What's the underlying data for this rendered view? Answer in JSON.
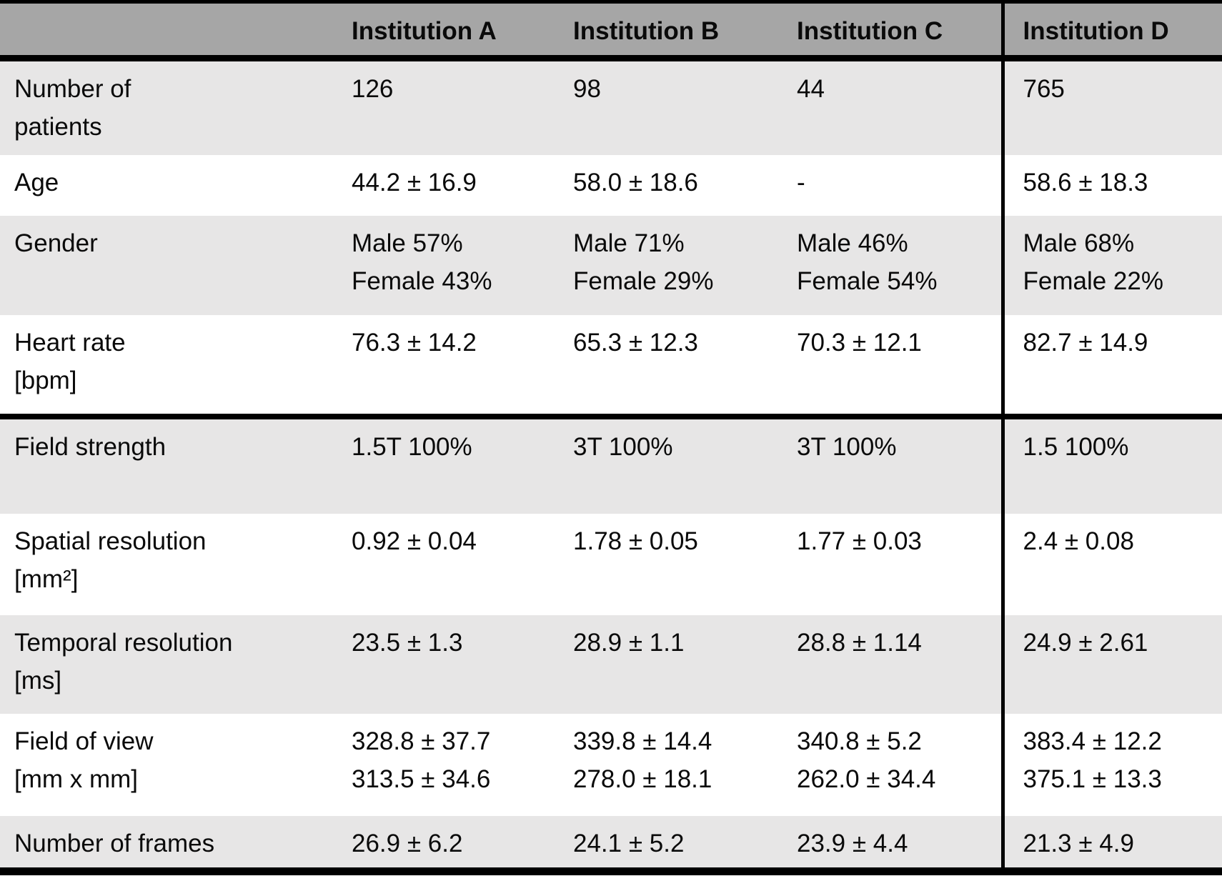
{
  "colors": {
    "header_bg": "#a6a6a6",
    "stripe_bg": "#e7e6e6",
    "row_bg": "#ffffff",
    "border": "#000000",
    "text": "#0a0a0a"
  },
  "table": {
    "columns": [
      "",
      "Institution A",
      "Institution B",
      "Institution C",
      "Institution D"
    ],
    "rows": [
      {
        "label": "Number of\npatients",
        "values": [
          "126",
          "98",
          "44",
          "765"
        ]
      },
      {
        "label": "Age",
        "values": [
          "44.2 ± 16.9",
          "58.0 ± 18.6",
          "-",
          "58.6 ± 18.3"
        ]
      },
      {
        "label": "Gender",
        "values": [
          "Male 57%\nFemale 43%",
          "Male 71%\nFemale 29%",
          "Male 46%\nFemale 54%",
          "Male 68%\nFemale 22%"
        ]
      },
      {
        "label": "Heart rate\n[bpm]",
        "values": [
          "76.3 ± 14.2",
          "65.3 ± 12.3",
          "70.3 ± 12.1",
          "82.7 ± 14.9"
        ]
      },
      {
        "label": "Field strength",
        "values": [
          "1.5T 100%",
          "3T 100%",
          "3T 100%",
          "1.5 100%"
        ]
      },
      {
        "label": "Spatial resolution\n[mm²]",
        "values": [
          "0.92 ± 0.04",
          "1.78 ± 0.05",
          "1.77 ± 0.03",
          "2.4 ± 0.08"
        ]
      },
      {
        "label": "Temporal resolution\n[ms]",
        "values": [
          "23.5 ± 1.3",
          "28.9 ± 1.1",
          "28.8 ± 1.14",
          "24.9 ± 2.61"
        ]
      },
      {
        "label": "Field of view\n[mm x mm]",
        "values": [
          "328.8 ± 37.7\n313.5 ± 34.6",
          "339.8 ± 14.4\n278.0 ± 18.1",
          "340.8 ± 5.2\n262.0 ± 34.4",
          "383.4 ± 12.2\n375.1 ± 13.3"
        ]
      },
      {
        "label": "Number of frames",
        "values": [
          "26.9 ± 6.2",
          "24.1 ± 5.2",
          "23.9 ± 4.4",
          "21.3 ± 4.9"
        ]
      }
    ]
  }
}
